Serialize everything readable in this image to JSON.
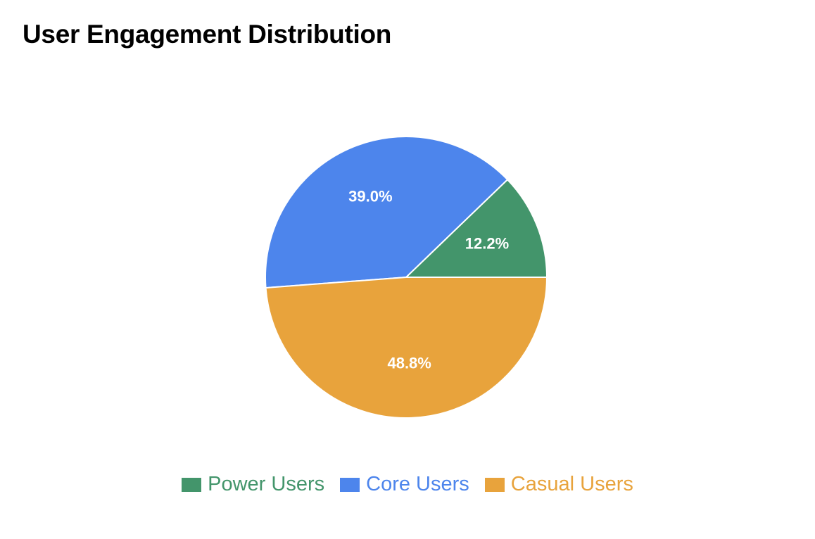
{
  "chart_data": {
    "type": "pie",
    "title": "User Engagement Distribution",
    "categories": [
      "Power Users",
      "Core Users",
      "Casual Users"
    ],
    "values": [
      12.2,
      39.0,
      48.8
    ],
    "labels": [
      "12.2%",
      "39.0%",
      "48.8%"
    ],
    "colors": [
      "#43956b",
      "#4d85ec",
      "#e8a33c"
    ],
    "legend_position": "bottom"
  }
}
